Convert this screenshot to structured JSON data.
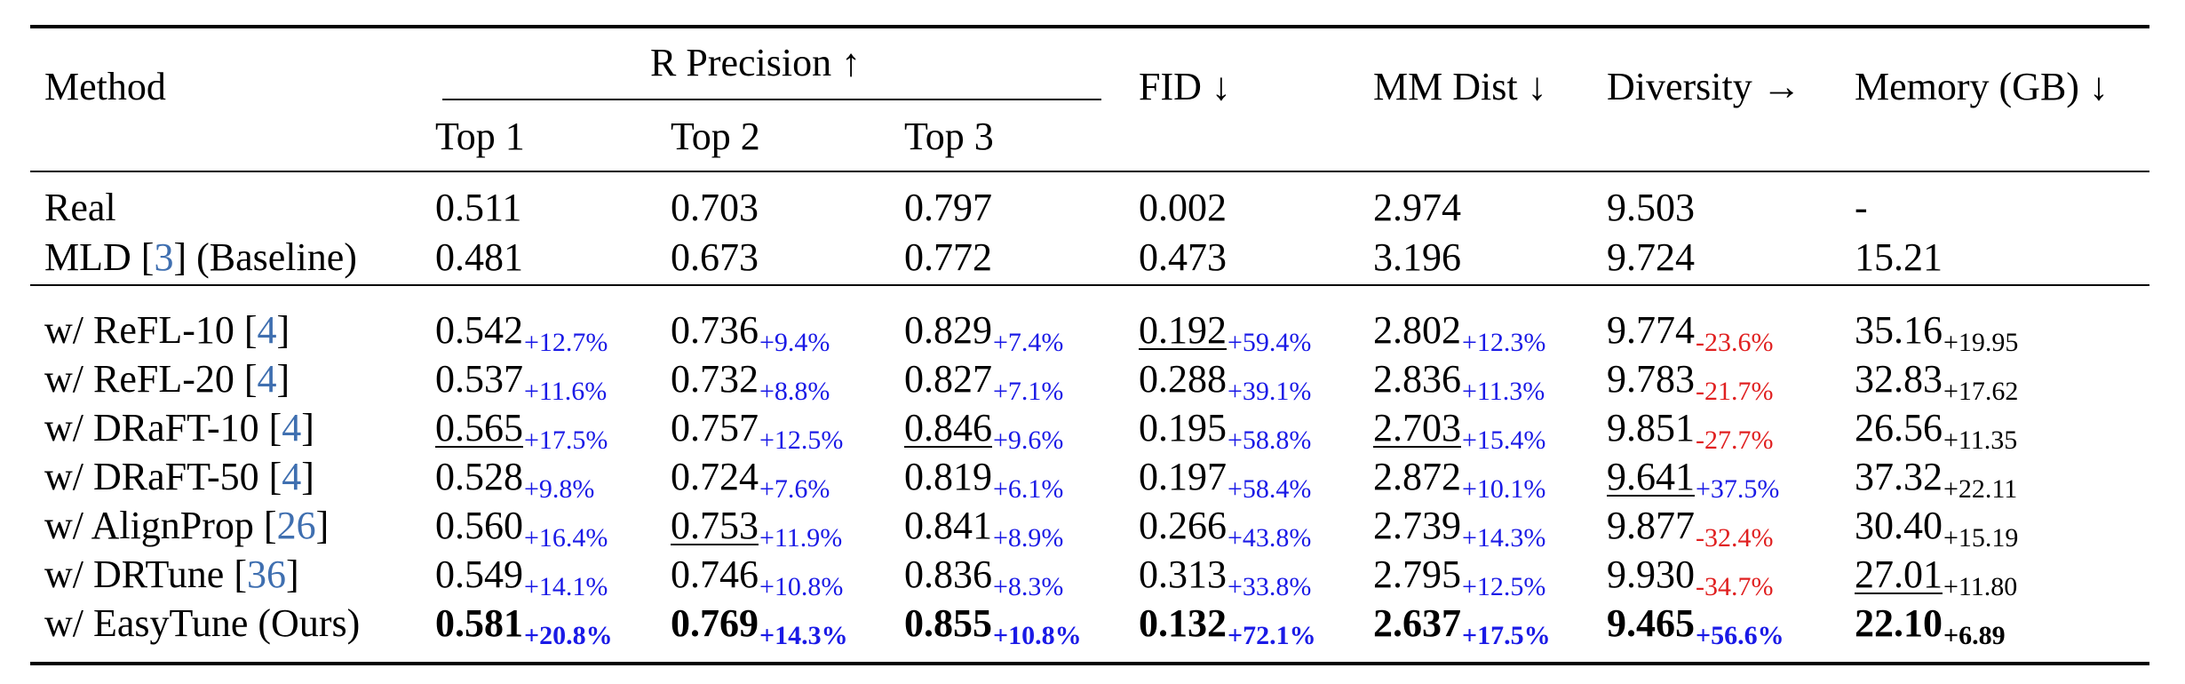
{
  "header": {
    "method": "Method",
    "r_precision": "R Precision ↑",
    "top1": "Top 1",
    "top2": "Top 2",
    "top3": "Top 3",
    "fid": "FID ↓",
    "mm_dist": "MM Dist ↓",
    "diversity": "Diversity →",
    "memory": "Memory (GB) ↓"
  },
  "baseline_rows": [
    {
      "method": "Real",
      "cite": "",
      "suffix": "",
      "cells": [
        "0.511",
        "0.703",
        "0.797",
        "0.002",
        "2.974",
        "9.503",
        "-"
      ]
    },
    {
      "method": "MLD [",
      "cite": "3",
      "suffix": "] (Baseline)",
      "cells": [
        "0.481",
        "0.673",
        "0.772",
        "0.473",
        "3.196",
        "9.724",
        "15.21"
      ]
    }
  ],
  "method_rows": [
    {
      "method": "w/ ReFL-10 [",
      "cite": "4",
      "suffix": "]",
      "cells": [
        {
          "v": "0.542",
          "d": "+12.7%"
        },
        {
          "v": "0.736",
          "d": "+9.4%"
        },
        {
          "v": "0.829",
          "d": "+7.4%"
        },
        {
          "v": "0.192",
          "d": "+59.4%"
        },
        {
          "v": "2.802",
          "d": "+12.3%"
        },
        {
          "v": "9.774",
          "d": "-23.6%"
        },
        {
          "v": "35.16",
          "d": "+19.95"
        }
      ]
    },
    {
      "method": "w/ ReFL-20 [",
      "cite": "4",
      "suffix": "]",
      "cells": [
        {
          "v": "0.537",
          "d": "+11.6%"
        },
        {
          "v": "0.732",
          "d": "+8.8%"
        },
        {
          "v": "0.827",
          "d": "+7.1%"
        },
        {
          "v": "0.288",
          "d": "+39.1%"
        },
        {
          "v": "2.836",
          "d": "+11.3%"
        },
        {
          "v": "9.783",
          "d": "-21.7%"
        },
        {
          "v": "32.83",
          "d": "+17.62"
        }
      ]
    },
    {
      "method": "w/ DRaFT-10 [",
      "cite": "4",
      "suffix": "]",
      "cells": [
        {
          "v": "0.565",
          "d": "+17.5%"
        },
        {
          "v": "0.757",
          "d": "+12.5%"
        },
        {
          "v": "0.846",
          "d": "+9.6%"
        },
        {
          "v": "0.195",
          "d": "+58.8%"
        },
        {
          "v": "2.703",
          "d": "+15.4%"
        },
        {
          "v": "9.851",
          "d": "-27.7%"
        },
        {
          "v": "26.56",
          "d": "+11.35"
        }
      ]
    },
    {
      "method": "w/ DRaFT-50 [",
      "cite": "4",
      "suffix": "]",
      "cells": [
        {
          "v": "0.528",
          "d": "+9.8%"
        },
        {
          "v": "0.724",
          "d": "+7.6%"
        },
        {
          "v": "0.819",
          "d": "+6.1%"
        },
        {
          "v": "0.197",
          "d": "+58.4%"
        },
        {
          "v": "2.872",
          "d": "+10.1%"
        },
        {
          "v": "9.641",
          "d": "+37.5%"
        },
        {
          "v": "37.32",
          "d": "+22.11"
        }
      ]
    },
    {
      "method": "w/ AlignProp [",
      "cite": "26",
      "suffix": "]",
      "cells": [
        {
          "v": "0.560",
          "d": "+16.4%"
        },
        {
          "v": "0.753",
          "d": "+11.9%"
        },
        {
          "v": "0.841",
          "d": "+8.9%"
        },
        {
          "v": "0.266",
          "d": "+43.8%"
        },
        {
          "v": "2.739",
          "d": "+14.3%"
        },
        {
          "v": "9.877",
          "d": "-32.4%"
        },
        {
          "v": "30.40",
          "d": "+15.19"
        }
      ]
    },
    {
      "method": "w/ DRTune [",
      "cite": "36",
      "suffix": "]",
      "cells": [
        {
          "v": "0.549",
          "d": "+14.1%"
        },
        {
          "v": "0.746",
          "d": "+10.8%"
        },
        {
          "v": "0.836",
          "d": "+8.3%"
        },
        {
          "v": "0.313",
          "d": "+33.8%"
        },
        {
          "v": "2.795",
          "d": "+12.5%"
        },
        {
          "v": "9.930",
          "d": "-34.7%"
        },
        {
          "v": "27.01",
          "d": "+11.80"
        }
      ]
    },
    {
      "method": "w/ EasyTune (Ours)",
      "cite": "",
      "suffix": "",
      "cells": [
        {
          "v": "0.581",
          "d": "+20.8%"
        },
        {
          "v": "0.769",
          "d": "+14.3%"
        },
        {
          "v": "0.855",
          "d": "+10.8%"
        },
        {
          "v": "0.132",
          "d": "+72.1%"
        },
        {
          "v": "2.637",
          "d": "+17.5%"
        },
        {
          "v": "9.465",
          "d": "+56.6%"
        },
        {
          "v": "22.10",
          "d": "+6.89"
        }
      ]
    }
  ]
}
